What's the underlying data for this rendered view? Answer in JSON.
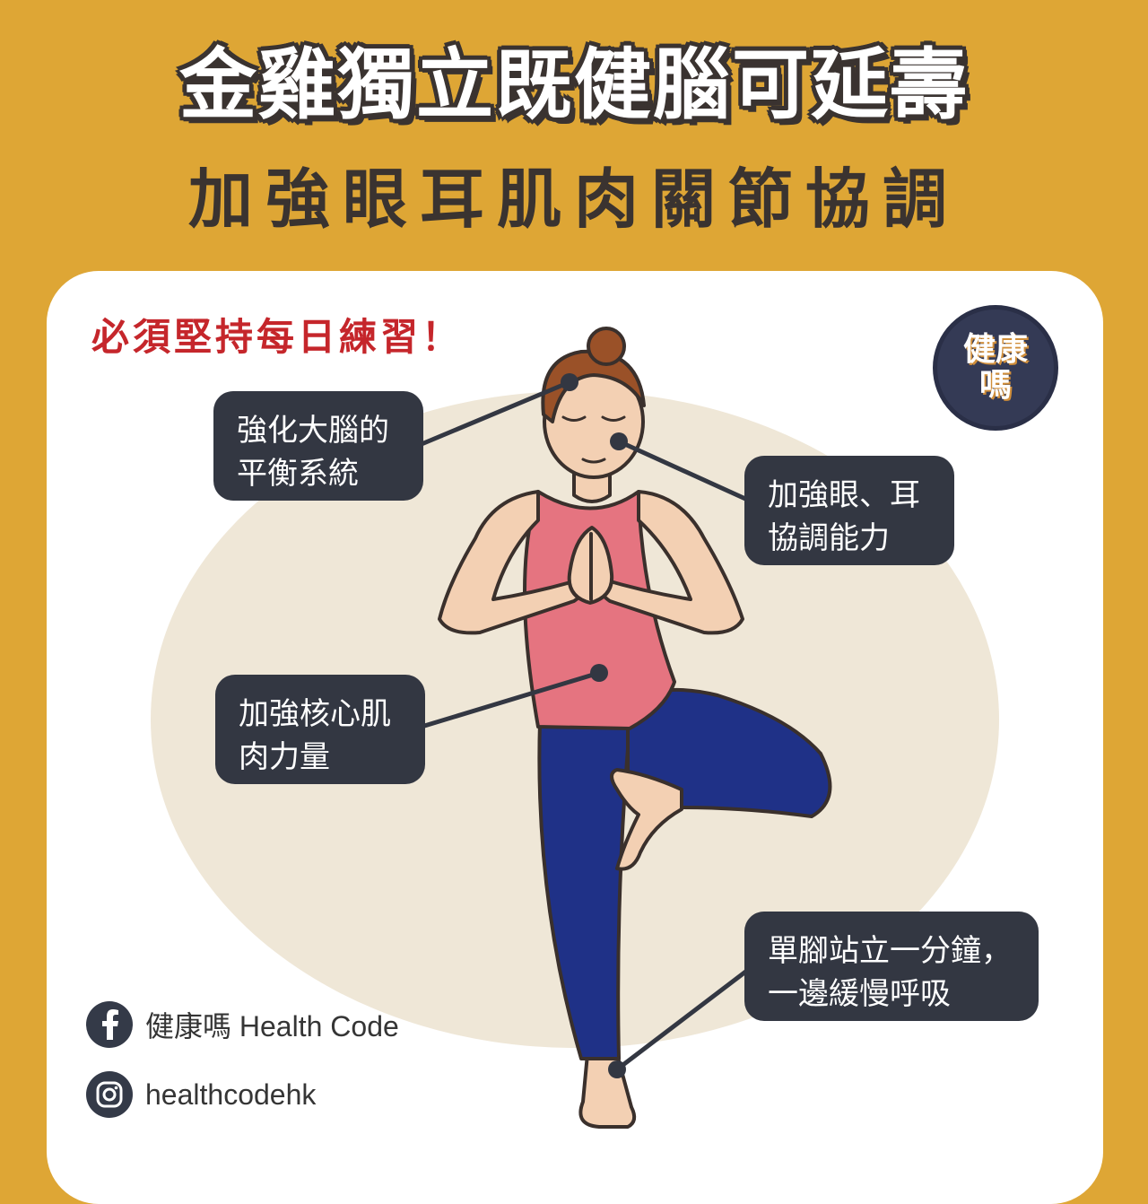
{
  "header": {
    "title": "金雞獨立既健腦可延壽",
    "subtitle": "加強眼耳肌肉關節協調"
  },
  "practice_note": "必須堅持每日練習！",
  "logo": {
    "line1": "健康",
    "line2": "嗎"
  },
  "callouts": {
    "brain": {
      "line1": "強化大腦的",
      "line2": "平衡系統"
    },
    "eyes_ears": {
      "line1": "加強眼、耳",
      "line2": "協調能力"
    },
    "core": {
      "line1": "加強核心肌",
      "line2": "肉力量"
    },
    "stand": {
      "line1": "單腳站立一分鐘，",
      "line2": "一邊緩慢呼吸"
    }
  },
  "social": {
    "facebook": {
      "icon": "facebook-icon",
      "text": "健康嗎 Health Code"
    },
    "instagram": {
      "icon": "instagram-icon",
      "text": "healthcodehk"
    }
  },
  "colors": {
    "background": "#dea635",
    "card": "#ffffff",
    "label_bg": "#333742",
    "accent_red": "#c5262b",
    "top_pink": "#e57480",
    "leggings": "#1f3187",
    "skin": "#f3d0b3",
    "hair": "#9a5128"
  }
}
